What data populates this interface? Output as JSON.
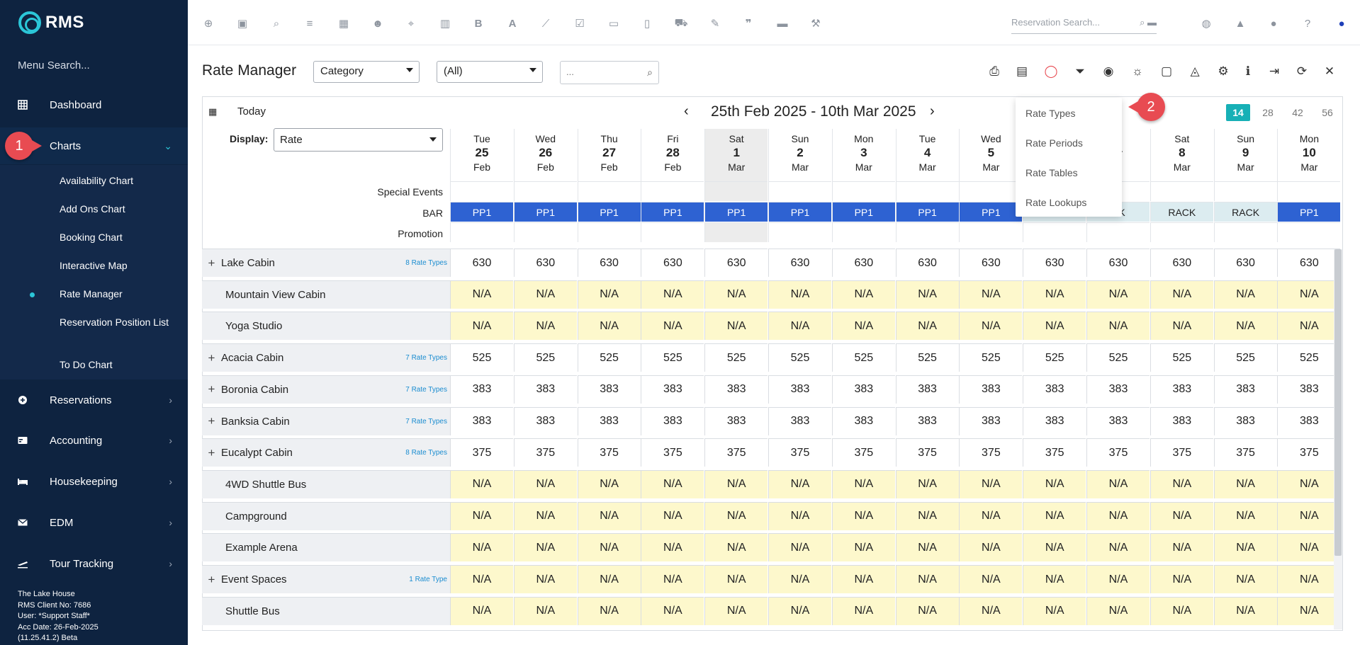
{
  "app": {
    "logo_text": "RMS"
  },
  "sidebar": {
    "menu_search": "Menu Search...",
    "items": [
      {
        "label": "Dashboard",
        "icon": "grid-icon"
      },
      {
        "label": "Charts",
        "icon": "chart-icon",
        "expanded": true
      },
      {
        "label": "Reservations",
        "icon": "plus-circle-icon"
      },
      {
        "label": "Accounting",
        "icon": "card-icon"
      },
      {
        "label": "Housekeeping",
        "icon": "bed-icon"
      },
      {
        "label": "EDM",
        "icon": "mail-icon"
      },
      {
        "label": "Tour Tracking",
        "icon": "plane-icon"
      }
    ],
    "charts_sub": [
      {
        "label": "Availability Chart"
      },
      {
        "label": "Add Ons Chart"
      },
      {
        "label": "Booking Chart"
      },
      {
        "label": "Interactive Map"
      },
      {
        "label": "Rate Manager",
        "active": true
      },
      {
        "label": "Reservation Position List"
      },
      {
        "label": "To Do Chart"
      }
    ],
    "footer": {
      "line1": "The Lake House",
      "line2": "RMS Client No: 7686",
      "line3": "User: *Support Staff*",
      "line4": "Acc Date: 26-Feb-2025",
      "line5": "(11.25.41.2)  Beta"
    }
  },
  "markers": {
    "m1": "1",
    "m2": "2"
  },
  "topbar": {
    "reservation_search_placeholder": "Reservation Search...",
    "letter_b": "B",
    "letter_a": "A"
  },
  "page": {
    "title": "Rate Manager",
    "category_select": "Category",
    "all_select": "(All)",
    "filter_placeholder": "..."
  },
  "calendar": {
    "today_label": "Today",
    "range_title": "25th Feb 2025 - 10th Mar 2025",
    "spans": [
      "14",
      "28",
      "42",
      "56"
    ],
    "display_label": "Display:",
    "display_value": "Rate",
    "days": [
      {
        "dow": "Tue",
        "dn": "25",
        "mon": "Feb",
        "we": false
      },
      {
        "dow": "Wed",
        "dn": "26",
        "mon": "Feb",
        "we": false
      },
      {
        "dow": "Thu",
        "dn": "27",
        "mon": "Feb",
        "we": false
      },
      {
        "dow": "Fri",
        "dn": "28",
        "mon": "Feb",
        "we": false
      },
      {
        "dow": "Sat",
        "dn": "1",
        "mon": "Mar",
        "we": true
      },
      {
        "dow": "Sun",
        "dn": "2",
        "mon": "Mar",
        "we": false
      },
      {
        "dow": "Mon",
        "dn": "3",
        "mon": "Mar",
        "we": false
      },
      {
        "dow": "Tue",
        "dn": "4",
        "mon": "Mar",
        "we": false
      },
      {
        "dow": "Wed",
        "dn": "5",
        "mon": "Mar",
        "we": false
      },
      {
        "dow": "",
        "dn": "",
        "mon": "",
        "we": false
      },
      {
        "dow": "i",
        "dn": "",
        "mon": "ar",
        "we": false
      },
      {
        "dow": "Sat",
        "dn": "8",
        "mon": "Mar",
        "we": false
      },
      {
        "dow": "Sun",
        "dn": "9",
        "mon": "Mar",
        "we": false
      },
      {
        "dow": "Mon",
        "dn": "10",
        "mon": "Mar",
        "we": false
      }
    ],
    "row_labels": {
      "special": "Special Events",
      "bar": "BAR",
      "promotion": "Promotion"
    },
    "bar_values": [
      "PP1",
      "PP1",
      "PP1",
      "PP1",
      "PP1",
      "PP1",
      "PP1",
      "PP1",
      "PP1",
      "",
      "CK",
      "RACK",
      "RACK",
      "PP1"
    ],
    "rooms": [
      {
        "name": "Lake Cabin",
        "expandable": true,
        "rate_types": "8 Rate Types",
        "value": "630",
        "na": false
      },
      {
        "name": "Mountain View Cabin",
        "expandable": false,
        "rate_types": "",
        "value": "N/A",
        "na": true
      },
      {
        "name": "Yoga Studio",
        "expandable": false,
        "rate_types": "",
        "value": "N/A",
        "na": true
      },
      {
        "name": "Acacia Cabin",
        "expandable": true,
        "rate_types": "7 Rate Types",
        "value": "525",
        "na": false
      },
      {
        "name": "Boronia Cabin",
        "expandable": true,
        "rate_types": "7 Rate Types",
        "value": "383",
        "na": false
      },
      {
        "name": "Banksia Cabin",
        "expandable": true,
        "rate_types": "7 Rate Types",
        "value": "383",
        "na": false
      },
      {
        "name": "Eucalypt Cabin",
        "expandable": true,
        "rate_types": "8 Rate Types",
        "value": "375",
        "na": false
      },
      {
        "name": "4WD Shuttle Bus",
        "expandable": false,
        "rate_types": "",
        "value": "N/A",
        "na": true
      },
      {
        "name": "Campground",
        "expandable": false,
        "rate_types": "",
        "value": "N/A",
        "na": true
      },
      {
        "name": "Example Arena",
        "expandable": false,
        "rate_types": "",
        "value": "N/A",
        "na": true
      },
      {
        "name": "Event Spaces",
        "expandable": true,
        "rate_types": "1 Rate Type",
        "value": "N/A",
        "na": true
      },
      {
        "name": "Shuttle Bus",
        "expandable": false,
        "rate_types": "",
        "value": "N/A",
        "na": true
      }
    ]
  },
  "dropdown": {
    "items": [
      "Rate Types",
      "Rate Periods",
      "Rate Tables",
      "Rate Lookups"
    ]
  }
}
